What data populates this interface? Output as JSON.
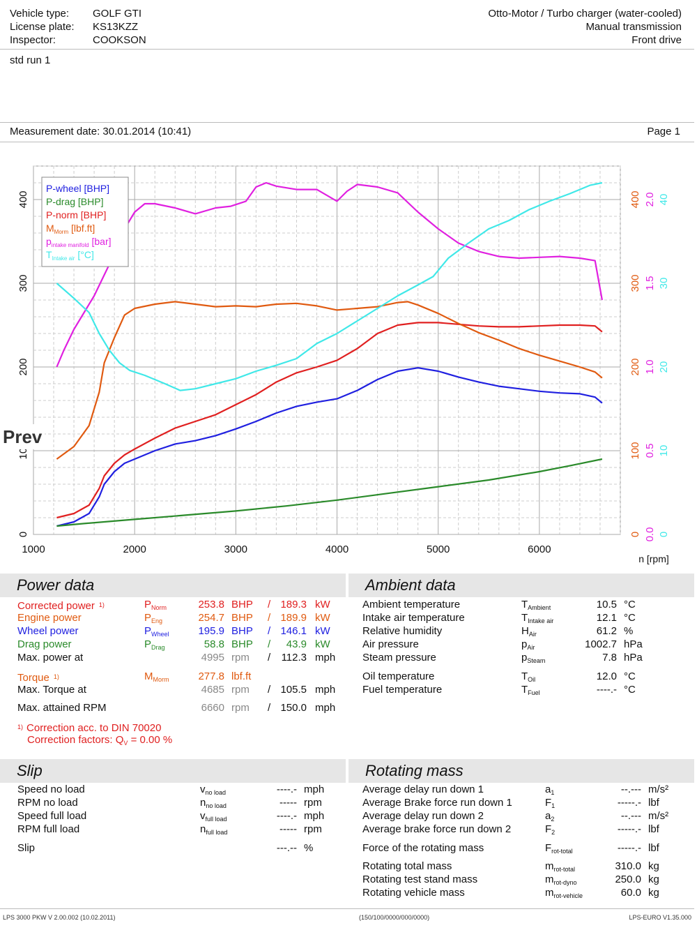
{
  "header": {
    "vehicle_type_label": "Vehicle type:",
    "vehicle_type": "GOLF GTI",
    "license_label": "License plate:",
    "license": "KS13KZZ",
    "inspector_label": "Inspector:",
    "inspector": "COOKSON",
    "engine": "Otto-Motor / Turbo charger (water-cooled)",
    "transmission": "Manual transmission",
    "drive": "Front drive",
    "notes": "std run 1",
    "measurement_date": "Measurement date: 30.01.2014 (10:41)",
    "page": "Page 1"
  },
  "overlay_label": "Prev",
  "chart_data": {
    "type": "line",
    "title": "",
    "xlabel": "n [rpm]",
    "xlim": [
      1000,
      6800
    ],
    "ylim": [
      0,
      440
    ],
    "x_ticks": [
      "1000",
      "2000",
      "3000",
      "4000",
      "5000",
      "6000"
    ],
    "y_ticks_left": [
      "0",
      "100",
      "200",
      "300",
      "400"
    ],
    "y_ticks_torque": [
      "0",
      "100",
      "200",
      "300",
      "400"
    ],
    "y_ticks_pressure": [
      "0.0",
      "0.5",
      "1.0",
      "1.5",
      "2.0"
    ],
    "y_ticks_temp": [
      "0",
      "10",
      "20",
      "30",
      "40"
    ],
    "legend": [
      {
        "name": "P-wheel [BHP]",
        "color": "#2020e0"
      },
      {
        "name": "P-drag [BHP]",
        "color": "#2a8a2a"
      },
      {
        "name": "P-norm [BHP]",
        "color": "#e02020"
      },
      {
        "name": "M",
        "sub": "Morm",
        "suffix": " [lbf.ft]",
        "color": "#e05a10"
      },
      {
        "name": "p",
        "sub": "intake manifold",
        "suffix": " [bar]",
        "color": "#e020e0"
      },
      {
        "name": "T",
        "sub": "Intake air",
        "suffix": " [°C]",
        "color": "#40e8e8"
      }
    ],
    "series": [
      {
        "name": "P-wheel",
        "color": "#2020e0",
        "x": [
          1230,
          1400,
          1550,
          1650,
          1700,
          1800,
          1900,
          2000,
          2200,
          2400,
          2600,
          2800,
          3000,
          3200,
          3400,
          3600,
          3800,
          4000,
          4200,
          4400,
          4600,
          4800,
          5000,
          5200,
          5400,
          5600,
          5800,
          6000,
          6200,
          6400,
          6550,
          6620
        ],
        "y": [
          10,
          15,
          25,
          45,
          60,
          75,
          85,
          90,
          100,
          108,
          112,
          118,
          126,
          135,
          145,
          153,
          158,
          162,
          172,
          185,
          195,
          199,
          195,
          188,
          182,
          177,
          174,
          171,
          169,
          168,
          164,
          157
        ]
      },
      {
        "name": "P-drag",
        "color": "#2a8a2a",
        "x": [
          1230,
          1500,
          2000,
          2500,
          3000,
          3500,
          4000,
          4500,
          5000,
          5500,
          6000,
          6300,
          6620
        ],
        "y": [
          10,
          13,
          18,
          23,
          28,
          34,
          41,
          49,
          57,
          65,
          75,
          82,
          90
        ]
      },
      {
        "name": "P-norm",
        "color": "#e02020",
        "x": [
          1230,
          1400,
          1550,
          1650,
          1700,
          1800,
          1900,
          2000,
          2200,
          2400,
          2600,
          2800,
          3000,
          3200,
          3400,
          3600,
          3800,
          4000,
          4200,
          4400,
          4600,
          4800,
          5000,
          5200,
          5400,
          5600,
          5800,
          6000,
          6200,
          6400,
          6550,
          6620
        ],
        "y": [
          20,
          25,
          35,
          55,
          70,
          85,
          95,
          102,
          115,
          127,
          135,
          143,
          155,
          167,
          182,
          193,
          200,
          208,
          222,
          240,
          250,
          253,
          253,
          251,
          249,
          248,
          248,
          249,
          250,
          250,
          249,
          242
        ]
      },
      {
        "name": "M",
        "color": "#e05a10",
        "x": [
          1230,
          1400,
          1550,
          1650,
          1700,
          1800,
          1900,
          2000,
          2200,
          2400,
          2600,
          2800,
          3000,
          3200,
          3400,
          3600,
          3800,
          4000,
          4200,
          4400,
          4600,
          4700,
          4800,
          5000,
          5200,
          5400,
          5600,
          5800,
          6000,
          6200,
          6400,
          6550,
          6620
        ],
        "y": [
          90,
          105,
          130,
          170,
          205,
          235,
          262,
          270,
          275,
          278,
          275,
          272,
          273,
          272,
          275,
          276,
          273,
          268,
          270,
          272,
          277,
          278,
          274,
          264,
          252,
          241,
          232,
          222,
          214,
          207,
          200,
          194,
          187
        ]
      },
      {
        "name": "p",
        "color": "#e020e0",
        "x": [
          1230,
          1300,
          1400,
          1500,
          1600,
          1700,
          1800,
          1900,
          2000,
          2100,
          2200,
          2400,
          2600,
          2800,
          2950,
          3100,
          3200,
          3300,
          3400,
          3600,
          3800,
          4000,
          4100,
          4200,
          4400,
          4600,
          4800,
          5000,
          5200,
          5400,
          5600,
          5800,
          6000,
          6200,
          6400,
          6550,
          6620
        ],
        "y": [
          200,
          220,
          245,
          265,
          285,
          310,
          335,
          365,
          385,
          395,
          395,
          390,
          383,
          390,
          392,
          398,
          415,
          420,
          416,
          412,
          412,
          398,
          410,
          418,
          415,
          408,
          385,
          365,
          348,
          338,
          332,
          330,
          331,
          332,
          330,
          327,
          280
        ]
      },
      {
        "name": "T",
        "color": "#40e8e8",
        "x": [
          1230,
          1400,
          1550,
          1650,
          1750,
          1850,
          1950,
          2100,
          2300,
          2450,
          2600,
          2800,
          3000,
          3200,
          3400,
          3600,
          3800,
          4000,
          4200,
          4400,
          4600,
          4800,
          4950,
          5100,
          5300,
          5500,
          5700,
          5900,
          6100,
          6300,
          6500,
          6620
        ],
        "y": [
          300,
          282,
          265,
          240,
          220,
          205,
          196,
          190,
          180,
          172,
          174,
          180,
          186,
          195,
          202,
          210,
          228,
          240,
          255,
          270,
          285,
          298,
          308,
          330,
          348,
          365,
          375,
          388,
          398,
          407,
          417,
          420
        ]
      }
    ]
  },
  "power": {
    "title": "Power data",
    "rows": [
      {
        "label": "Corrected power",
        "note": "1)",
        "sym": "P",
        "sub": "Norm",
        "v1": "253.8",
        "u1": "BHP",
        "sep": "/",
        "v2": "189.3",
        "u2": "kW"
      },
      {
        "label": "Engine power",
        "sym": "P",
        "sub": "Eng",
        "v1": "254.7",
        "u1": "BHP",
        "sep": "/",
        "v2": "189.9",
        "u2": "kW"
      },
      {
        "label": "Wheel power",
        "sym": "P",
        "sub": "Wheel",
        "v1": "195.9",
        "u1": "BHP",
        "sep": "/",
        "v2": "146.1",
        "u2": "kW"
      },
      {
        "label": "Drag power",
        "sym": "P",
        "sub": "Drag",
        "v1": "58.8",
        "u1": "BHP",
        "sep": "/",
        "v2": "43.9",
        "u2": "kW"
      },
      {
        "label": "Max. power at",
        "v1": "4995",
        "u1": "rpm",
        "sep": "/",
        "v2": "112.3",
        "u2": "mph"
      },
      {
        "label": "Torque",
        "note": "1)",
        "sym": "M",
        "sub": "Morm",
        "v1": "277.8",
        "u1": "lbf.ft"
      },
      {
        "label": "Max. Torque at",
        "v1": "4685",
        "u1": "rpm",
        "sep": "/",
        "v2": "105.5",
        "u2": "mph"
      },
      {
        "label": "Max. attained RPM",
        "v1": "6660",
        "u1": "rpm",
        "sep": "/",
        "v2": "150.0",
        "u2": "mph"
      }
    ],
    "footnote_mark": "1)",
    "footnote1": "Correction acc. to DIN 70020",
    "footnote2_pre": "Correction factors: Q",
    "footnote2_sub": "V",
    "footnote2_post": " =   0.00 %"
  },
  "ambient": {
    "title": "Ambient data",
    "rows": [
      {
        "label": "Ambient temperature",
        "sym": "T",
        "sub": "Ambient",
        "val": "10.5",
        "unit": "°C"
      },
      {
        "label": "Intake air temperature",
        "sym": "T",
        "sub": "Intake air",
        "val": "12.1",
        "unit": "°C"
      },
      {
        "label": "Relative humidity",
        "sym": "H",
        "sub": "Air",
        "val": "61.2",
        "unit": "%"
      },
      {
        "label": "Air pressure",
        "sym": "p",
        "sub": "Air",
        "val": "1002.7",
        "unit": "hPa"
      },
      {
        "label": "Steam pressure",
        "sym": "p",
        "sub": "Steam",
        "val": "7.8",
        "unit": "hPa"
      },
      {
        "label": "Oil temperature",
        "sym": "T",
        "sub": "Oil",
        "val": "12.0",
        "unit": "°C"
      },
      {
        "label": "Fuel temperature",
        "sym": "T",
        "sub": "Fuel",
        "val": "----.-",
        "unit": "°C"
      }
    ]
  },
  "slip": {
    "title": "Slip",
    "rows": [
      {
        "label": "Speed no load",
        "sym": "v",
        "sub": "no load",
        "val": "----.-",
        "unit": "mph"
      },
      {
        "label": "RPM no load",
        "sym": "n",
        "sub": "no load",
        "val": "-----",
        "unit": "rpm"
      },
      {
        "label": "Speed full load",
        "sym": "v",
        "sub": "full load",
        "val": "----.-",
        "unit": "mph"
      },
      {
        "label": "RPM full load",
        "sym": "n",
        "sub": "full load",
        "val": "-----",
        "unit": "rpm"
      },
      {
        "label": "Slip",
        "val": "---.--",
        "unit": "%"
      }
    ]
  },
  "rotating": {
    "title": "Rotating mass",
    "rows": [
      {
        "label": "Average delay run down 1",
        "sym": "a",
        "sub": "1",
        "val": "--.---",
        "unit": "m/s²"
      },
      {
        "label": "Average Brake force run down 1",
        "sym": "F",
        "sub": "1",
        "val": "-----.-",
        "unit": "lbf"
      },
      {
        "label": "Average delay run down 2",
        "sym": "a",
        "sub": "2",
        "val": "--.---",
        "unit": "m/s²"
      },
      {
        "label": "Average brake force run down 2",
        "sym": "F",
        "sub": "2",
        "val": "-----.-",
        "unit": "lbf"
      },
      {
        "label": "Force of the rotating mass",
        "sym": "F",
        "sub": "rot-total",
        "val": "-----.-",
        "unit": "lbf"
      },
      {
        "label": "Rotating total mass",
        "sym": "m",
        "sub": "rot-total",
        "val": "310.0",
        "unit": "kg"
      },
      {
        "label": "Rotating test stand mass",
        "sym": "m",
        "sub": "rot-dyno",
        "val": "250.0",
        "unit": "kg"
      },
      {
        "label": "Rotating vehicle mass",
        "sym": "m",
        "sub": "rot-vehicle",
        "val": "60.0",
        "unit": "kg"
      }
    ]
  },
  "footer": {
    "left": "LPS 3000 PKW V 2.00.002 (10.02.2011)",
    "center": "(150/100/0000/000/0000)",
    "right": "LPS-EURO V1.35.000"
  }
}
